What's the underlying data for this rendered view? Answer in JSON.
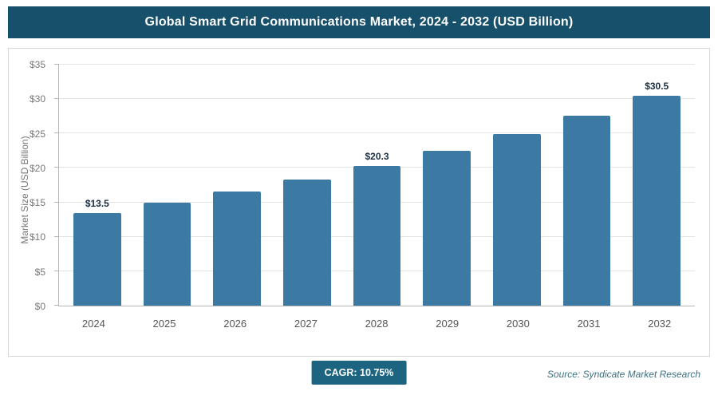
{
  "header": {
    "title": "Global Smart Grid Communications Market, 2024 - 2032 (USD Billion)"
  },
  "chart_data": {
    "type": "bar",
    "title": "Global Smart Grid Communications Market, 2024 - 2032 (USD Billion)",
    "categories": [
      "2024",
      "2025",
      "2026",
      "2027",
      "2028",
      "2029",
      "2030",
      "2031",
      "2032"
    ],
    "values": [
      13.5,
      14.9,
      16.6,
      18.3,
      20.3,
      22.5,
      24.9,
      27.6,
      30.5
    ],
    "data_labels": [
      "$13.5",
      "",
      "",
      "",
      "$20.3",
      "",
      "",
      "",
      "$30.5"
    ],
    "xlabel": "",
    "ylabel": "Market Size (USD Billion)",
    "ylim": [
      0,
      35
    ],
    "yticks": [
      0,
      5,
      10,
      15,
      20,
      25,
      30,
      35
    ],
    "ytick_labels": [
      "$0",
      "$5",
      "$10",
      "$15",
      "$20",
      "$25",
      "$30",
      "$35"
    ],
    "grid": true,
    "legend": false
  },
  "footer": {
    "cagr_badge": "CAGR: 10.75%",
    "source": "Source: Syndicate Market Research"
  },
  "colors": {
    "banner_bg": "#17506b",
    "bar": "#3c7aa3",
    "badge_bg": "#1d6480",
    "source_text": "#3f7080"
  }
}
